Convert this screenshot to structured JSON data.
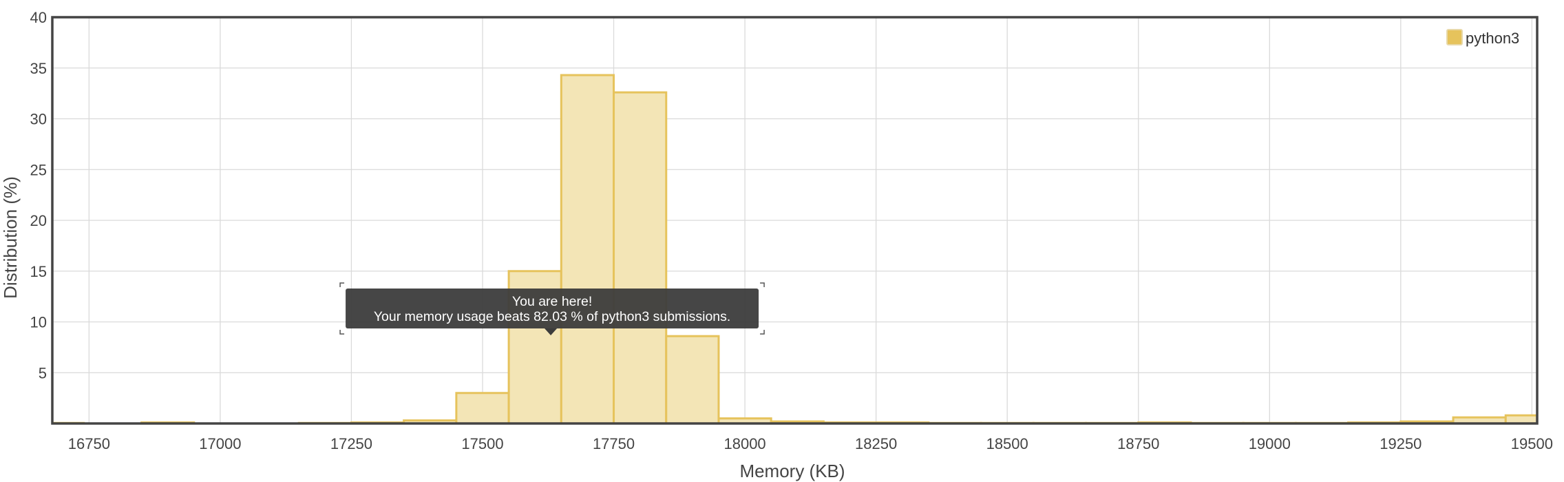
{
  "chart_data": {
    "type": "bar",
    "title": "",
    "xlabel": "Memory (KB)",
    "ylabel": "Distribution (%)",
    "xlim": [
      16680,
      19510
    ],
    "ylim": [
      0,
      40
    ],
    "x_ticks": [
      16750,
      17000,
      17250,
      17500,
      17750,
      18000,
      18250,
      18500,
      18750,
      19000,
      19250,
      19500
    ],
    "y_ticks": [
      5,
      10,
      15,
      20,
      25,
      30,
      35,
      40
    ],
    "grid": true,
    "legend_position": "top-right",
    "bin_width": 100,
    "series": [
      {
        "name": "python3",
        "color": "#e6c35c",
        "fill_color": "#f3e5b6",
        "bars": [
          {
            "x0": 16680,
            "x1": 16740,
            "value": 0.05
          },
          {
            "x0": 16850,
            "x1": 16950,
            "value": 0.1
          },
          {
            "x0": 17150,
            "x1": 17250,
            "value": 0.05
          },
          {
            "x0": 17250,
            "x1": 17350,
            "value": 0.1
          },
          {
            "x0": 17350,
            "x1": 17450,
            "value": 0.3
          },
          {
            "x0": 17450,
            "x1": 17550,
            "value": 3.0
          },
          {
            "x0": 17550,
            "x1": 17650,
            "value": 15.0
          },
          {
            "x0": 17650,
            "x1": 17750,
            "value": 34.3
          },
          {
            "x0": 17750,
            "x1": 17850,
            "value": 32.6
          },
          {
            "x0": 17850,
            "x1": 17950,
            "value": 8.6
          },
          {
            "x0": 17950,
            "x1": 18050,
            "value": 0.5
          },
          {
            "x0": 18050,
            "x1": 18150,
            "value": 0.2
          },
          {
            "x0": 18150,
            "x1": 18250,
            "value": 0.1
          },
          {
            "x0": 18250,
            "x1": 18350,
            "value": 0.1
          },
          {
            "x0": 18350,
            "x1": 18450,
            "value": 0.05
          },
          {
            "x0": 18450,
            "x1": 18550,
            "value": 0.05
          },
          {
            "x0": 18550,
            "x1": 18650,
            "value": 0.05
          },
          {
            "x0": 18650,
            "x1": 18750,
            "value": 0.05
          },
          {
            "x0": 18750,
            "x1": 18850,
            "value": 0.1
          },
          {
            "x0": 18850,
            "x1": 18950,
            "value": 0.05
          },
          {
            "x0": 18950,
            "x1": 19050,
            "value": 0.05
          },
          {
            "x0": 19050,
            "x1": 19150,
            "value": 0.05
          },
          {
            "x0": 19150,
            "x1": 19250,
            "value": 0.1
          },
          {
            "x0": 19250,
            "x1": 19350,
            "value": 0.2
          },
          {
            "x0": 19350,
            "x1": 19450,
            "value": 0.6
          },
          {
            "x0": 19450,
            "x1": 19510,
            "value": 0.8
          }
        ]
      }
    ],
    "annotation": {
      "x": 17630,
      "line1": "You are here!",
      "line2": "Your memory usage beats 82.03 % of python3 submissions."
    }
  }
}
